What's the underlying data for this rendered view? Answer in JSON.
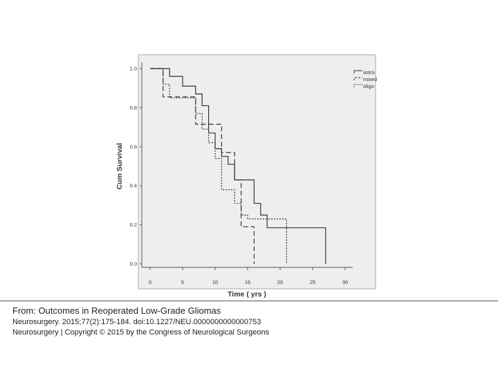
{
  "chart_data": {
    "type": "line",
    "xlabel": "Time ( yrs )",
    "ylabel": "Cum Survival",
    "xlim": [
      0,
      30
    ],
    "ylim": [
      0,
      1
    ],
    "x_ticks": [
      "0",
      "5",
      "10",
      "15",
      "20",
      "25",
      "30"
    ],
    "y_ticks": [
      "0.0",
      "0.2",
      "0.4",
      "0.6",
      "0.8",
      "1.0"
    ],
    "x_tick_values": [
      0,
      5,
      10,
      15,
      20,
      25,
      30
    ],
    "y_tick_values": [
      0,
      0.2,
      0.4,
      0.6,
      0.8,
      1.0
    ],
    "legend_position": "top-right",
    "grid": false,
    "plot_background": "#eeeeee",
    "series": [
      {
        "name": "astro",
        "line_style": "solid",
        "color": "#333333",
        "x": [
          0,
          3,
          5,
          7,
          8,
          9,
          10,
          11,
          12,
          13,
          16,
          17,
          18,
          27
        ],
        "y": [
          1.0,
          0.96,
          0.91,
          0.87,
          0.81,
          0.67,
          0.59,
          0.55,
          0.51,
          0.43,
          0.31,
          0.25,
          0.185,
          0.0
        ]
      },
      {
        "name": "mixed",
        "line_style": "dashed",
        "color": "#333333",
        "x": [
          0,
          2,
          7,
          8,
          11,
          13,
          14,
          16
        ],
        "y": [
          1.0,
          0.855,
          0.715,
          0.715,
          0.57,
          0.43,
          0.19,
          0.0
        ]
      },
      {
        "name": "oligo",
        "line_style": "dotted",
        "color": "#333333",
        "x": [
          0,
          2,
          3,
          7,
          8,
          9,
          10,
          11,
          13,
          14,
          15,
          21
        ],
        "y": [
          1.0,
          0.92,
          0.85,
          0.77,
          0.69,
          0.62,
          0.54,
          0.38,
          0.31,
          0.25,
          0.23,
          0.0
        ]
      }
    ]
  },
  "caption": {
    "title": "From: Outcomes in Reoperated Low-Grade Gliomas",
    "citation": "Neurosurgery. 2015;77(2):175-184. doi:10.1227/NEU.0000000000000753",
    "copyright": "Neurosurgery | Copyright © 2015 by the Congress of Neurological Surgeons"
  }
}
